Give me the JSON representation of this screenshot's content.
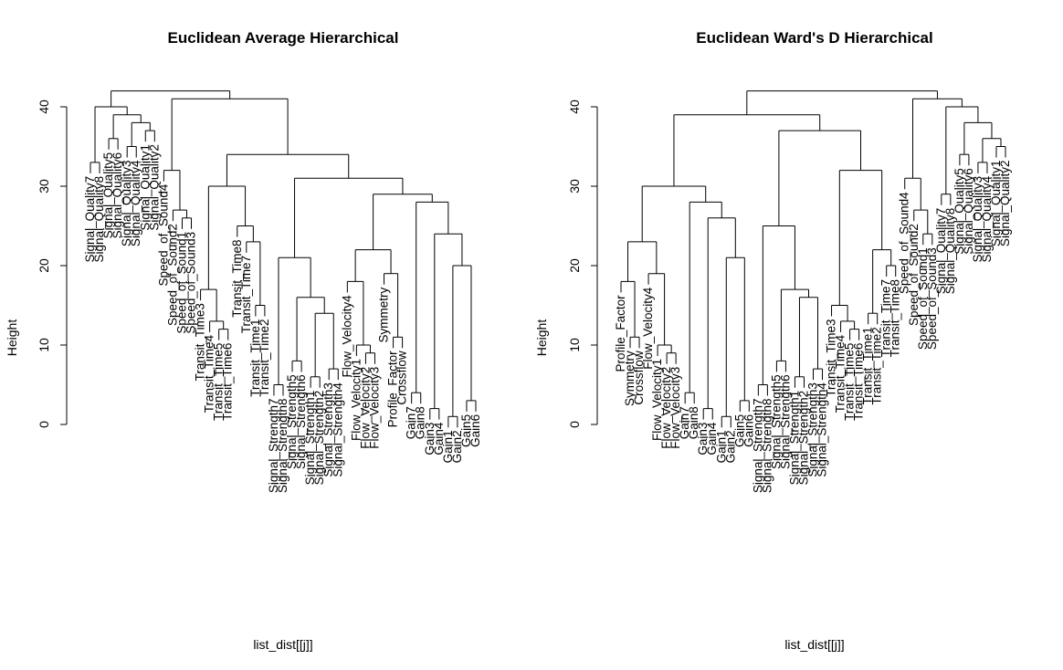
{
  "chart_data": [
    {
      "type": "dendrogram",
      "title": "Euclidean Average Hierarchical",
      "xlabel": "list_dist[[j]]",
      "ylabel": "Height",
      "ylim": [
        0,
        44
      ],
      "yticks": [
        0,
        10,
        20,
        30,
        40
      ],
      "labels": [
        "Signal_Quality7",
        "Signal_Quality8",
        "Signal_Quality5",
        "Signal_Quality6",
        "Signal_Quality3",
        "Signal_Quality4",
        "Signal_Quality1",
        "Signal_Quality2",
        "Speed_of_Sound4",
        "Speed_of_Sound2",
        "Speed_of_Sound1",
        "Speed_of_Sound3",
        "Transit_Time3",
        "Transit_Time4",
        "Transit_Time5",
        "Transit_Time6",
        "Transit_Time8",
        "Transit_Time7",
        "Transit_Time1",
        "Transit_Time2",
        "Signal_Strength7",
        "Signal_Strength8",
        "Signal_Strength5",
        "Signal_Strength6",
        "Signal_Strength1",
        "Signal_Strength2",
        "Signal_Strength3",
        "Signal_Strength4",
        "Flow_Velocity4",
        "Flow_Velocity1",
        "Flow_Velocity2",
        "Flow_Velocity3",
        "Symmetry",
        "Profile_Factor",
        "Crossflow",
        "Gain7",
        "Gain8",
        "Gain3",
        "Gain4",
        "Gain1",
        "Gain2",
        "Gain5",
        "Gain6"
      ],
      "merges": [
        {
          "a": [
            "L",
            0
          ],
          "b": [
            "L",
            1
          ],
          "h": 33
        },
        {
          "a": [
            "L",
            2
          ],
          "b": [
            "L",
            3
          ],
          "h": 36
        },
        {
          "a": [
            "L",
            4
          ],
          "b": [
            "L",
            5
          ],
          "h": 35
        },
        {
          "a": [
            "L",
            6
          ],
          "b": [
            "L",
            7
          ],
          "h": 37
        },
        {
          "a": [
            "N",
            2
          ],
          "b": [
            "N",
            3
          ],
          "h": 38
        },
        {
          "a": [
            "N",
            1
          ],
          "b": [
            "N",
            4
          ],
          "h": 39
        },
        {
          "a": [
            "N",
            0
          ],
          "b": [
            "N",
            5
          ],
          "h": 40
        },
        {
          "a": [
            "L",
            10
          ],
          "b": [
            "L",
            11
          ],
          "h": 26
        },
        {
          "a": [
            "L",
            9
          ],
          "b": [
            "N",
            7
          ],
          "h": 27
        },
        {
          "a": [
            "L",
            8
          ],
          "b": [
            "N",
            8
          ],
          "h": 32
        },
        {
          "a": [
            "L",
            14
          ],
          "b": [
            "L",
            15
          ],
          "h": 12
        },
        {
          "a": [
            "L",
            13
          ],
          "b": [
            "N",
            10
          ],
          "h": 13
        },
        {
          "a": [
            "L",
            12
          ],
          "b": [
            "N",
            11
          ],
          "h": 17
        },
        {
          "a": [
            "L",
            18
          ],
          "b": [
            "L",
            19
          ],
          "h": 15
        },
        {
          "a": [
            "L",
            17
          ],
          "b": [
            "N",
            13
          ],
          "h": 23
        },
        {
          "a": [
            "L",
            16
          ],
          "b": [
            "N",
            14
          ],
          "h": 25
        },
        {
          "a": [
            "N",
            12
          ],
          "b": [
            "N",
            15
          ],
          "h": 30
        },
        {
          "a": [
            "L",
            20
          ],
          "b": [
            "L",
            21
          ],
          "h": 5
        },
        {
          "a": [
            "L",
            22
          ],
          "b": [
            "L",
            23
          ],
          "h": 8
        },
        {
          "a": [
            "L",
            24
          ],
          "b": [
            "L",
            25
          ],
          "h": 6
        },
        {
          "a": [
            "L",
            26
          ],
          "b": [
            "L",
            27
          ],
          "h": 7
        },
        {
          "a": [
            "N",
            19
          ],
          "b": [
            "N",
            20
          ],
          "h": 14
        },
        {
          "a": [
            "N",
            18
          ],
          "b": [
            "N",
            21
          ],
          "h": 16
        },
        {
          "a": [
            "N",
            17
          ],
          "b": [
            "N",
            22
          ],
          "h": 21
        },
        {
          "a": [
            "L",
            30
          ],
          "b": [
            "L",
            31
          ],
          "h": 9
        },
        {
          "a": [
            "L",
            29
          ],
          "b": [
            "N",
            24
          ],
          "h": 10
        },
        {
          "a": [
            "L",
            28
          ],
          "b": [
            "N",
            25
          ],
          "h": 18
        },
        {
          "a": [
            "L",
            33
          ],
          "b": [
            "L",
            34
          ],
          "h": 11
        },
        {
          "a": [
            "L",
            32
          ],
          "b": [
            "N",
            27
          ],
          "h": 19
        },
        {
          "a": [
            "N",
            26
          ],
          "b": [
            "N",
            28
          ],
          "h": 22
        },
        {
          "a": [
            "L",
            35
          ],
          "b": [
            "L",
            36
          ],
          "h": 4
        },
        {
          "a": [
            "L",
            37
          ],
          "b": [
            "L",
            38
          ],
          "h": 2
        },
        {
          "a": [
            "L",
            39
          ],
          "b": [
            "L",
            40
          ],
          "h": 1
        },
        {
          "a": [
            "L",
            41
          ],
          "b": [
            "L",
            42
          ],
          "h": 3
        },
        {
          "a": [
            "N",
            32
          ],
          "b": [
            "N",
            33
          ],
          "h": 20
        },
        {
          "a": [
            "N",
            31
          ],
          "b": [
            "N",
            34
          ],
          "h": 24
        },
        {
          "a": [
            "N",
            30
          ],
          "b": [
            "N",
            35
          ],
          "h": 28
        },
        {
          "a": [
            "N",
            29
          ],
          "b": [
            "N",
            36
          ],
          "h": 29
        },
        {
          "a": [
            "N",
            23
          ],
          "b": [
            "N",
            37
          ],
          "h": 31
        },
        {
          "a": [
            "N",
            16
          ],
          "b": [
            "N",
            38
          ],
          "h": 34
        },
        {
          "a": [
            "N",
            9
          ],
          "b": [
            "N",
            39
          ],
          "h": 41
        },
        {
          "a": [
            "N",
            6
          ],
          "b": [
            "N",
            40
          ],
          "h": 42
        }
      ]
    },
    {
      "type": "dendrogram",
      "title": "Euclidean Ward's D Hierarchical",
      "xlabel": "list_dist[[j]]",
      "ylabel": "Height",
      "ylim": [
        0,
        44
      ],
      "yticks": [
        0,
        10,
        20,
        30,
        40
      ],
      "labels": [
        "Profile_Factor",
        "Symmetry",
        "Crossflow",
        "Flow_Velocity4",
        "Flow_Velocity1",
        "Flow_Velocity2",
        "Flow_Velocity3",
        "Gain7",
        "Gain8",
        "Gain3",
        "Gain4",
        "Gain1",
        "Gain2",
        "Gain5",
        "Gain6",
        "Signal_Strength7",
        "Signal_Strength8",
        "Signal_Strength5",
        "Signal_Strength6",
        "Signal_Strength1",
        "Signal_Strength2",
        "Signal_Strength3",
        "Signal_Strength4",
        "Transit_Time3",
        "Transit_Time4",
        "Transit_Time5",
        "Transit_Time6",
        "Transit_Time1",
        "Transit_Time2",
        "Transit_Time7",
        "Transit_Time8",
        "Speed_of_Sound4",
        "Speed_of_Sound2",
        "Speed_of_Sound1",
        "Speed_of_Sound3",
        "Signal_Quality7",
        "Signal_Quality8",
        "Signal_Quality5",
        "Signal_Quality6",
        "Signal_Quality3",
        "Signal_Quality4",
        "Signal_Quality1",
        "Signal_Quality2"
      ],
      "merges": [
        {
          "a": [
            "L",
            1
          ],
          "b": [
            "L",
            2
          ],
          "h": 11
        },
        {
          "a": [
            "L",
            0
          ],
          "b": [
            "N",
            0
          ],
          "h": 18
        },
        {
          "a": [
            "L",
            5
          ],
          "b": [
            "L",
            6
          ],
          "h": 9
        },
        {
          "a": [
            "L",
            4
          ],
          "b": [
            "N",
            2
          ],
          "h": 10
        },
        {
          "a": [
            "L",
            3
          ],
          "b": [
            "N",
            3
          ],
          "h": 19
        },
        {
          "a": [
            "N",
            1
          ],
          "b": [
            "N",
            4
          ],
          "h": 23
        },
        {
          "a": [
            "L",
            7
          ],
          "b": [
            "L",
            8
          ],
          "h": 4
        },
        {
          "a": [
            "L",
            9
          ],
          "b": [
            "L",
            10
          ],
          "h": 2
        },
        {
          "a": [
            "L",
            11
          ],
          "b": [
            "L",
            12
          ],
          "h": 1
        },
        {
          "a": [
            "L",
            13
          ],
          "b": [
            "L",
            14
          ],
          "h": 3
        },
        {
          "a": [
            "N",
            8
          ],
          "b": [
            "N",
            9
          ],
          "h": 21
        },
        {
          "a": [
            "N",
            7
          ],
          "b": [
            "N",
            10
          ],
          "h": 26
        },
        {
          "a": [
            "N",
            6
          ],
          "b": [
            "N",
            11
          ],
          "h": 28
        },
        {
          "a": [
            "N",
            5
          ],
          "b": [
            "N",
            12
          ],
          "h": 30
        },
        {
          "a": [
            "L",
            15
          ],
          "b": [
            "L",
            16
          ],
          "h": 5
        },
        {
          "a": [
            "L",
            17
          ],
          "b": [
            "L",
            18
          ],
          "h": 8
        },
        {
          "a": [
            "L",
            19
          ],
          "b": [
            "L",
            20
          ],
          "h": 6
        },
        {
          "a": [
            "L",
            21
          ],
          "b": [
            "L",
            22
          ],
          "h": 7
        },
        {
          "a": [
            "N",
            16
          ],
          "b": [
            "N",
            17
          ],
          "h": 16
        },
        {
          "a": [
            "N",
            15
          ],
          "b": [
            "N",
            18
          ],
          "h": 17
        },
        {
          "a": [
            "N",
            14
          ],
          "b": [
            "N",
            19
          ],
          "h": 25
        },
        {
          "a": [
            "L",
            25
          ],
          "b": [
            "L",
            26
          ],
          "h": 12
        },
        {
          "a": [
            "L",
            24
          ],
          "b": [
            "N",
            21
          ],
          "h": 13
        },
        {
          "a": [
            "L",
            23
          ],
          "b": [
            "N",
            22
          ],
          "h": 15
        },
        {
          "a": [
            "L",
            27
          ],
          "b": [
            "L",
            28
          ],
          "h": 14
        },
        {
          "a": [
            "L",
            30
          ],
          "b": [
            "L",
            29
          ],
          "h": 20
        },
        {
          "a": [
            "N",
            24
          ],
          "b": [
            "N",
            25
          ],
          "h": 22
        },
        {
          "a": [
            "N",
            23
          ],
          "b": [
            "N",
            26
          ],
          "h": 32
        },
        {
          "a": [
            "N",
            20
          ],
          "b": [
            "N",
            27
          ],
          "h": 37
        },
        {
          "a": [
            "N",
            13
          ],
          "b": [
            "N",
            28
          ],
          "h": 39
        },
        {
          "a": [
            "L",
            33
          ],
          "b": [
            "L",
            34
          ],
          "h": 24
        },
        {
          "a": [
            "L",
            32
          ],
          "b": [
            "N",
            30
          ],
          "h": 27
        },
        {
          "a": [
            "L",
            31
          ],
          "b": [
            "N",
            31
          ],
          "h": 31
        },
        {
          "a": [
            "L",
            35
          ],
          "b": [
            "L",
            36
          ],
          "h": 29
        },
        {
          "a": [
            "L",
            37
          ],
          "b": [
            "L",
            38
          ],
          "h": 34
        },
        {
          "a": [
            "L",
            39
          ],
          "b": [
            "L",
            40
          ],
          "h": 33
        },
        {
          "a": [
            "L",
            41
          ],
          "b": [
            "L",
            42
          ],
          "h": 35
        },
        {
          "a": [
            "N",
            35
          ],
          "b": [
            "N",
            36
          ],
          "h": 36
        },
        {
          "a": [
            "N",
            34
          ],
          "b": [
            "N",
            37
          ],
          "h": 38
        },
        {
          "a": [
            "N",
            33
          ],
          "b": [
            "N",
            38
          ],
          "h": 40
        },
        {
          "a": [
            "N",
            32
          ],
          "b": [
            "N",
            39
          ],
          "h": 41
        },
        {
          "a": [
            "N",
            29
          ],
          "b": [
            "N",
            40
          ],
          "h": 42
        }
      ]
    }
  ]
}
